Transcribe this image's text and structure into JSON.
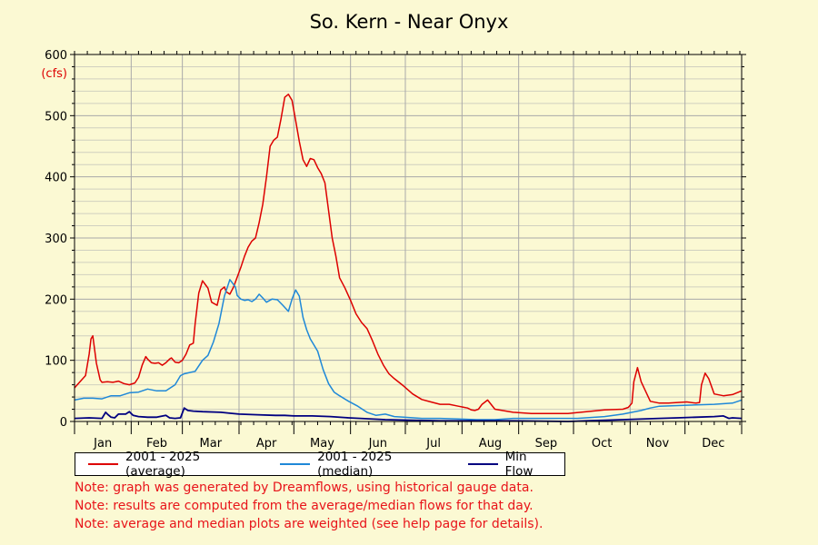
{
  "chart_data": {
    "type": "line",
    "title": "So. Kern - Near Onyx",
    "ylabel": "(cfs)",
    "ylim": [
      0,
      600
    ],
    "yticks": [
      0,
      100,
      200,
      300,
      400,
      500,
      600
    ],
    "xlim": [
      0,
      365
    ],
    "months": [
      "Jan",
      "Feb",
      "Mar",
      "Apr",
      "May",
      "Jun",
      "Jul",
      "Aug",
      "Sep",
      "Oct",
      "Nov",
      "Dec"
    ],
    "grid": true,
    "legend_position": "bottom",
    "series": [
      {
        "name": "2001 - 2025 (average)",
        "color": "#dd0000",
        "x": [
          0,
          3,
          6,
          8,
          9,
          10,
          12,
          14,
          15,
          18,
          21,
          24,
          27,
          30,
          33,
          35,
          37,
          39,
          40,
          42,
          44,
          46,
          48,
          50,
          52,
          53,
          55,
          57,
          59,
          61,
          63,
          65,
          66,
          68,
          70,
          72,
          73,
          75,
          78,
          80,
          82,
          83,
          85,
          87,
          89,
          91,
          93,
          95,
          97,
          99,
          101,
          103,
          105,
          107,
          109,
          111,
          113,
          115,
          117,
          119,
          121,
          123,
          125,
          127,
          129,
          131,
          133,
          135,
          137,
          139,
          141,
          143,
          145,
          148,
          151,
          154,
          157,
          160,
          163,
          166,
          169,
          172,
          175,
          180,
          185,
          190,
          195,
          200,
          205,
          210,
          215,
          217,
          219,
          221,
          223,
          226,
          230,
          240,
          250,
          260,
          270,
          280,
          290,
          300,
          303,
          305,
          306,
          308,
          310,
          315,
          320,
          325,
          330,
          335,
          340,
          342,
          343,
          345,
          347,
          350,
          355,
          360,
          365
        ],
        "y": [
          55,
          65,
          75,
          110,
          135,
          140,
          95,
          68,
          64,
          65,
          64,
          66,
          62,
          60,
          63,
          72,
          92,
          106,
          102,
          96,
          95,
          96,
          92,
          96,
          102,
          104,
          97,
          96,
          100,
          110,
          125,
          128,
          160,
          210,
          230,
          222,
          218,
          195,
          190,
          215,
          220,
          212,
          208,
          220,
          236,
          252,
          270,
          285,
          295,
          300,
          325,
          355,
          400,
          450,
          460,
          465,
          495,
          530,
          535,
          525,
          492,
          458,
          428,
          417,
          430,
          428,
          415,
          405,
          390,
          345,
          300,
          270,
          235,
          218,
          198,
          176,
          162,
          152,
          132,
          110,
          92,
          78,
          70,
          58,
          45,
          36,
          32,
          28,
          28,
          25,
          22,
          19,
          18,
          20,
          28,
          35,
          20,
          15,
          13,
          13,
          13,
          16,
          19,
          20,
          23,
          30,
          65,
          88,
          65,
          33,
          30,
          30,
          31,
          32,
          30,
          31,
          60,
          79,
          70,
          45,
          42,
          44,
          50
        ]
      },
      {
        "name": "2001 - 2025 (median)",
        "color": "#1f88d8",
        "x": [
          0,
          5,
          10,
          15,
          20,
          25,
          30,
          35,
          40,
          45,
          50,
          55,
          58,
          60,
          63,
          66,
          70,
          73,
          76,
          79,
          82,
          85,
          88,
          89,
          91,
          93,
          95,
          97,
          99,
          101,
          103,
          105,
          108,
          111,
          114,
          117,
          119,
          121,
          123,
          125,
          127,
          129,
          131,
          133,
          136,
          139,
          142,
          145,
          150,
          155,
          160,
          165,
          170,
          175,
          180,
          190,
          200,
          210,
          220,
          230,
          240,
          260,
          275,
          290,
          300,
          310,
          315,
          320,
          330,
          340,
          350,
          360,
          365
        ],
        "y": [
          35,
          38,
          38,
          37,
          42,
          42,
          47,
          48,
          53,
          50,
          50,
          60,
          75,
          78,
          80,
          82,
          100,
          108,
          130,
          160,
          205,
          232,
          220,
          206,
          200,
          198,
          199,
          196,
          200,
          208,
          202,
          195,
          200,
          199,
          190,
          180,
          200,
          215,
          205,
          170,
          150,
          135,
          125,
          115,
          85,
          62,
          48,
          42,
          33,
          25,
          15,
          10,
          12,
          8,
          7,
          5,
          5,
          4,
          3,
          3,
          5,
          5,
          5,
          8,
          12,
          18,
          22,
          25,
          26,
          27,
          28,
          30,
          35
        ]
      },
      {
        "name": "Min Flow",
        "color": "#000080",
        "x": [
          0,
          8,
          15,
          17,
          18,
          20,
          22,
          24,
          28,
          30,
          32,
          35,
          40,
          45,
          50,
          52,
          55,
          58,
          60,
          62,
          65,
          70,
          80,
          90,
          100,
          110,
          115,
          120,
          130,
          140,
          150,
          170,
          200,
          240,
          270,
          280,
          300,
          320,
          330,
          340,
          350,
          355,
          358,
          360,
          365
        ],
        "y": [
          5,
          6,
          5,
          15,
          12,
          7,
          6,
          12,
          12,
          16,
          10,
          8,
          7,
          7,
          10,
          6,
          5,
          6,
          22,
          18,
          17,
          16,
          15,
          12,
          11,
          10,
          10,
          9,
          9,
          8,
          6,
          3,
          1,
          1,
          0,
          1,
          3,
          5,
          6,
          7,
          8,
          9,
          5,
          6,
          5
        ]
      }
    ]
  },
  "notes": [
    "Note: graph was generated by Dreamflows, using historical gauge data.",
    "Note: results are computed from the average/median flows for that day.",
    "Note: average and median plots are weighted (see help page for details)."
  ],
  "colors": {
    "background": "#fbf9d3",
    "grid": "#bdbdbd",
    "note_text": "#e8141a"
  }
}
